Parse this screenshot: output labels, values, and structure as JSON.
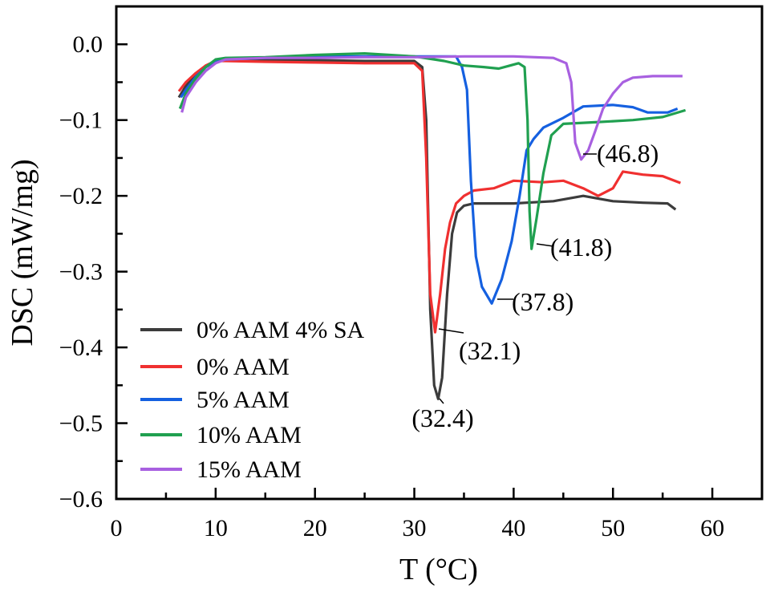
{
  "chart_data": {
    "type": "line",
    "title": "",
    "xlabel": "T (°C)",
    "ylabel": "DSC (mW/mg)",
    "xlim": [
      0,
      65
    ],
    "ylim": [
      -0.6,
      0.05
    ],
    "xticks": [
      "0",
      "10",
      "20",
      "30",
      "40",
      "50",
      "60"
    ],
    "yticks": [
      "0.0",
      "−0.1",
      "−0.2",
      "−0.3",
      "−0.4",
      "−0.5",
      "−0.6"
    ],
    "grid": false,
    "legend_position": "bottom-left",
    "series": [
      {
        "name": "0% AAM 4% SA",
        "color": "#3c3c3c",
        "x": [
          6.3,
          7,
          8,
          9,
          10,
          11,
          15,
          20,
          25,
          30,
          30.8,
          31.2,
          31.6,
          32.0,
          32.4,
          32.8,
          33.3,
          33.8,
          34.3,
          35,
          36,
          40,
          44,
          47,
          50,
          53,
          55.5,
          56.3
        ],
        "y": [
          -0.07,
          -0.055,
          -0.04,
          -0.03,
          -0.022,
          -0.02,
          -0.02,
          -0.021,
          -0.022,
          -0.022,
          -0.03,
          -0.1,
          -0.35,
          -0.45,
          -0.468,
          -0.44,
          -0.33,
          -0.25,
          -0.222,
          -0.213,
          -0.21,
          -0.21,
          -0.207,
          -0.2,
          -0.207,
          -0.209,
          -0.21,
          -0.218
        ]
      },
      {
        "name": "0% AAM",
        "color": "#f03030",
        "x": [
          6.3,
          7,
          8,
          9,
          10,
          11,
          15,
          20,
          25,
          30,
          30.8,
          31.2,
          31.6,
          32.1,
          32.6,
          33.1,
          33.6,
          34.2,
          35,
          36,
          38,
          39,
          40,
          43,
          45,
          47,
          48.5,
          50,
          51,
          53,
          55,
          56.8
        ],
        "y": [
          -0.062,
          -0.05,
          -0.038,
          -0.028,
          -0.022,
          -0.022,
          -0.023,
          -0.024,
          -0.025,
          -0.025,
          -0.035,
          -0.15,
          -0.33,
          -0.38,
          -0.33,
          -0.27,
          -0.235,
          -0.21,
          -0.2,
          -0.193,
          -0.19,
          -0.185,
          -0.18,
          -0.182,
          -0.18,
          -0.19,
          -0.2,
          -0.19,
          -0.168,
          -0.172,
          -0.174,
          -0.183
        ]
      },
      {
        "name": "5% AAM",
        "color": "#1560e0",
        "x": [
          6.5,
          7,
          8,
          9,
          10,
          11,
          15,
          20,
          25,
          30,
          34.2,
          34.8,
          35.3,
          35.7,
          36.2,
          36.8,
          37.8,
          38.8,
          39.8,
          40.6,
          41.3,
          42,
          43,
          45,
          47,
          50,
          52,
          53.5,
          55.5,
          56.5
        ],
        "y": [
          -0.07,
          -0.06,
          -0.043,
          -0.03,
          -0.022,
          -0.02,
          -0.018,
          -0.016,
          -0.016,
          -0.016,
          -0.016,
          -0.03,
          -0.06,
          -0.18,
          -0.28,
          -0.32,
          -0.342,
          -0.31,
          -0.26,
          -0.2,
          -0.14,
          -0.125,
          -0.11,
          -0.097,
          -0.082,
          -0.08,
          -0.083,
          -0.09,
          -0.09,
          -0.085
        ]
      },
      {
        "name": "10% AAM",
        "color": "#20a050",
        "x": [
          6.4,
          7,
          8,
          9,
          10,
          11,
          15,
          20,
          25,
          30,
          33,
          35,
          37,
          38.5,
          40.5,
          41.1,
          41.4,
          41.6,
          41.8,
          42.3,
          43,
          43.8,
          45,
          48,
          52,
          55,
          57.3
        ],
        "y": [
          -0.085,
          -0.065,
          -0.045,
          -0.03,
          -0.02,
          -0.018,
          -0.017,
          -0.014,
          -0.012,
          -0.016,
          -0.022,
          -0.028,
          -0.03,
          -0.032,
          -0.025,
          -0.03,
          -0.1,
          -0.22,
          -0.27,
          -0.23,
          -0.17,
          -0.12,
          -0.105,
          -0.103,
          -0.1,
          -0.096,
          -0.087
        ]
      },
      {
        "name": "15% AAM",
        "color": "#a860e0",
        "x": [
          6.6,
          7,
          8,
          9,
          10,
          11,
          15,
          20,
          25,
          30,
          35,
          40,
          44,
          45.3,
          45.8,
          46.2,
          46.8,
          47.5,
          48.2,
          49,
          50,
          51,
          52,
          54,
          57
        ],
        "y": [
          -0.09,
          -0.07,
          -0.05,
          -0.035,
          -0.025,
          -0.02,
          -0.018,
          -0.018,
          -0.017,
          -0.017,
          -0.016,
          -0.016,
          -0.018,
          -0.025,
          -0.05,
          -0.13,
          -0.152,
          -0.14,
          -0.115,
          -0.085,
          -0.065,
          -0.05,
          -0.044,
          -0.042,
          -0.042
        ]
      }
    ],
    "annotations": [
      {
        "text": "(32.4)",
        "x": 32.4,
        "y": -0.468
      },
      {
        "text": "(32.1)",
        "x": 32.1,
        "y": -0.38
      },
      {
        "text": "(37.8)",
        "x": 37.8,
        "y": -0.342
      },
      {
        "text": "(41.8)",
        "x": 41.8,
        "y": -0.27
      },
      {
        "text": "(46.8)",
        "x": 46.8,
        "y": -0.152
      }
    ]
  }
}
